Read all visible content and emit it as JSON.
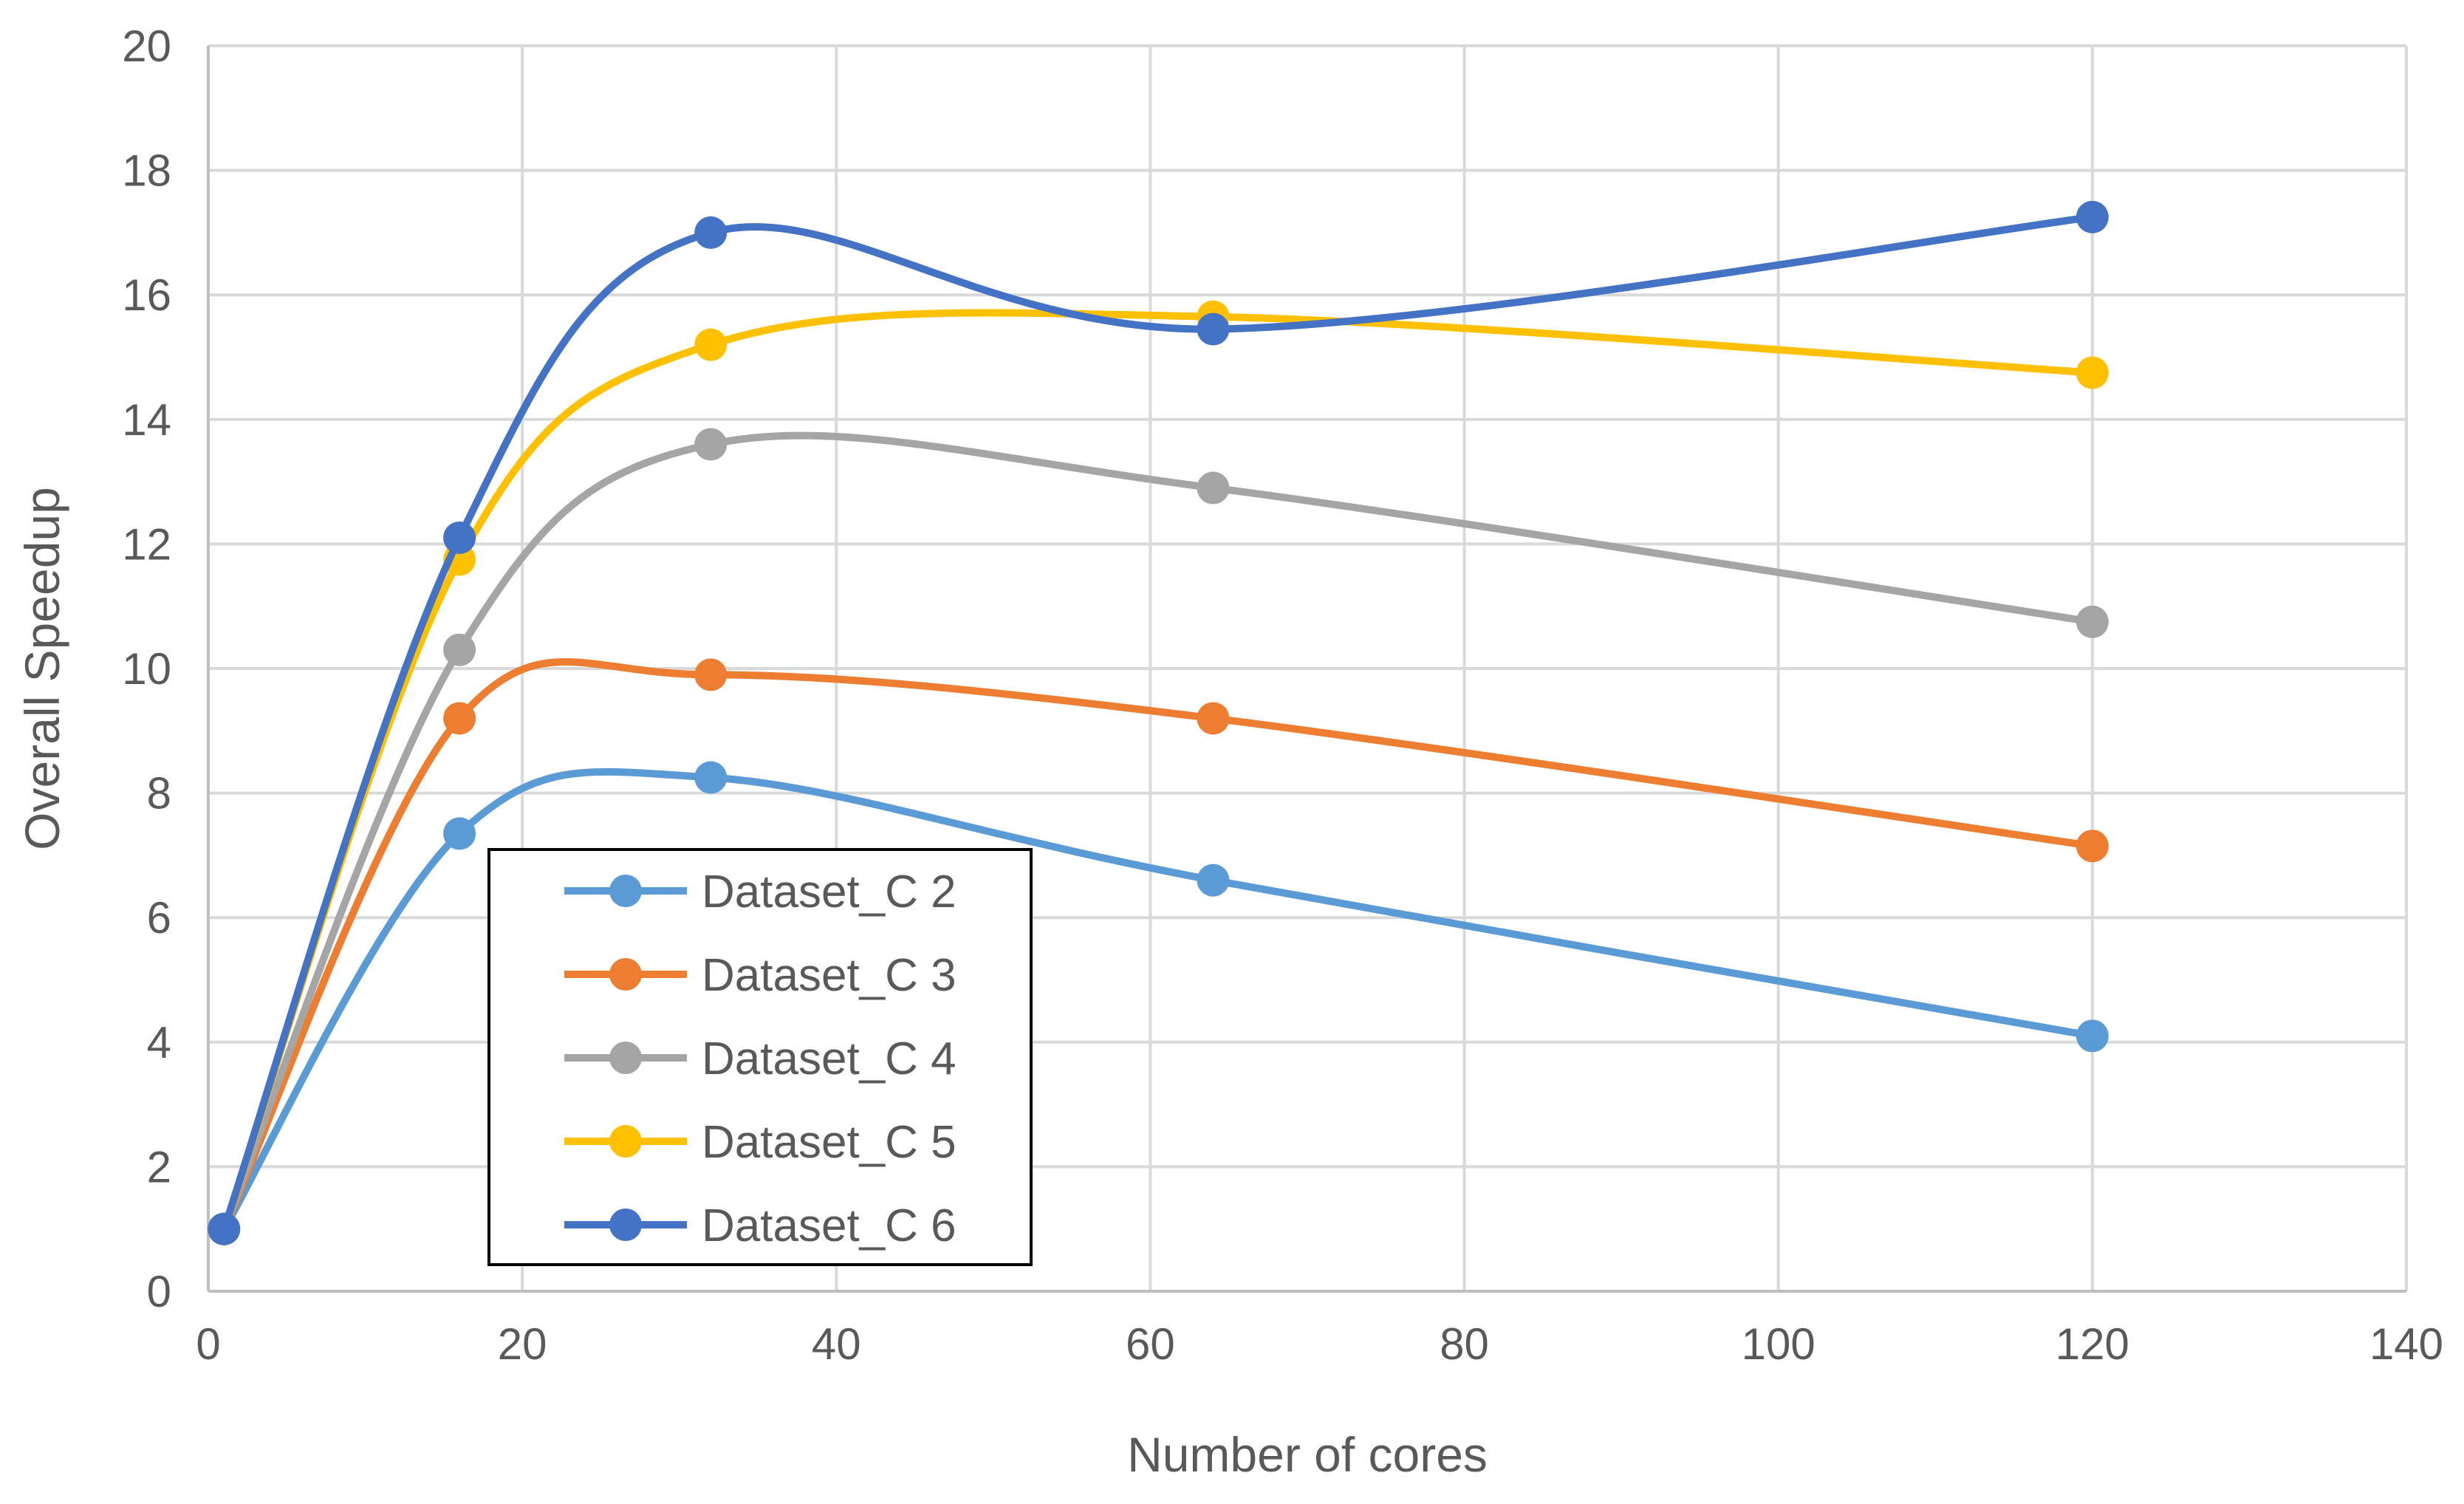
{
  "chart_data": {
    "type": "line",
    "title": "",
    "xlabel": "Number of cores",
    "ylabel": "Overall Speedup",
    "xlim": [
      0,
      140
    ],
    "ylim": [
      0,
      20
    ],
    "xticks": [
      0,
      20,
      40,
      60,
      80,
      100,
      120,
      140
    ],
    "yticks": [
      0,
      2,
      4,
      6,
      8,
      10,
      12,
      14,
      16,
      18,
      20
    ],
    "grid": true,
    "smooth": true,
    "legend_position": "lower-left inside",
    "x": [
      1,
      16,
      32,
      64,
      120
    ],
    "series": [
      {
        "name": "Dataset_C 2",
        "color": "#5B9BD5",
        "values": [
          1,
          7.35,
          8.25,
          6.6,
          4.1
        ]
      },
      {
        "name": "Dataset_C 3",
        "color": "#ED7D31",
        "values": [
          1,
          9.2,
          9.9,
          9.2,
          7.15
        ]
      },
      {
        "name": "Dataset_C 4",
        "color": "#A5A5A5",
        "values": [
          1,
          10.3,
          13.6,
          12.9,
          10.75
        ]
      },
      {
        "name": "Dataset_C 5",
        "color": "#FFC000",
        "values": [
          1,
          11.75,
          15.2,
          15.65,
          14.75
        ]
      },
      {
        "name": "Dataset_C 6",
        "color": "#4472C4",
        "values": [
          1,
          12.1,
          17.0,
          15.45,
          17.25
        ]
      }
    ]
  }
}
